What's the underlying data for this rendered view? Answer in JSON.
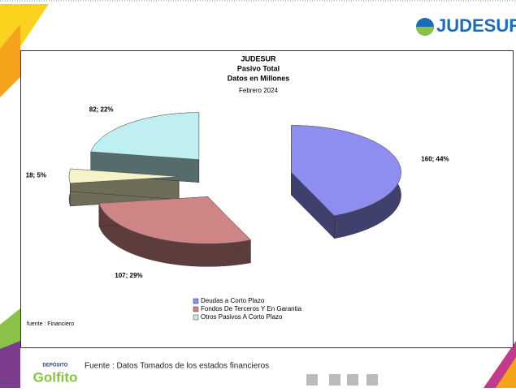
{
  "logo": {
    "name": "JUDESUR"
  },
  "footer": {
    "source": "Fuente : Datos Tomados de los estados financieros",
    "brand_top": "DEPÓSITO",
    "brand_name": "Golfito"
  },
  "chart_data": {
    "type": "pie",
    "title_lines": [
      "JUDESUR",
      "Pasivo Total",
      "Datos en Millones"
    ],
    "subtitle": "Febrero 2024",
    "note": "fuente : Financiero",
    "categories": [
      "Deudas a Corto Plazo",
      "Fondos De Terceros Y En Garantia",
      null,
      "Otros Pasivos A Corto Plazo"
    ],
    "values": [
      160,
      107,
      18,
      82
    ],
    "value_labels": [
      "160; 44%",
      "107; 29%",
      "18; 5%",
      "82; 22%"
    ],
    "colors": [
      "#8e8ef0",
      "#cf8585",
      "#f6f3c6",
      "#bfeff0"
    ],
    "legend": "bottom"
  }
}
